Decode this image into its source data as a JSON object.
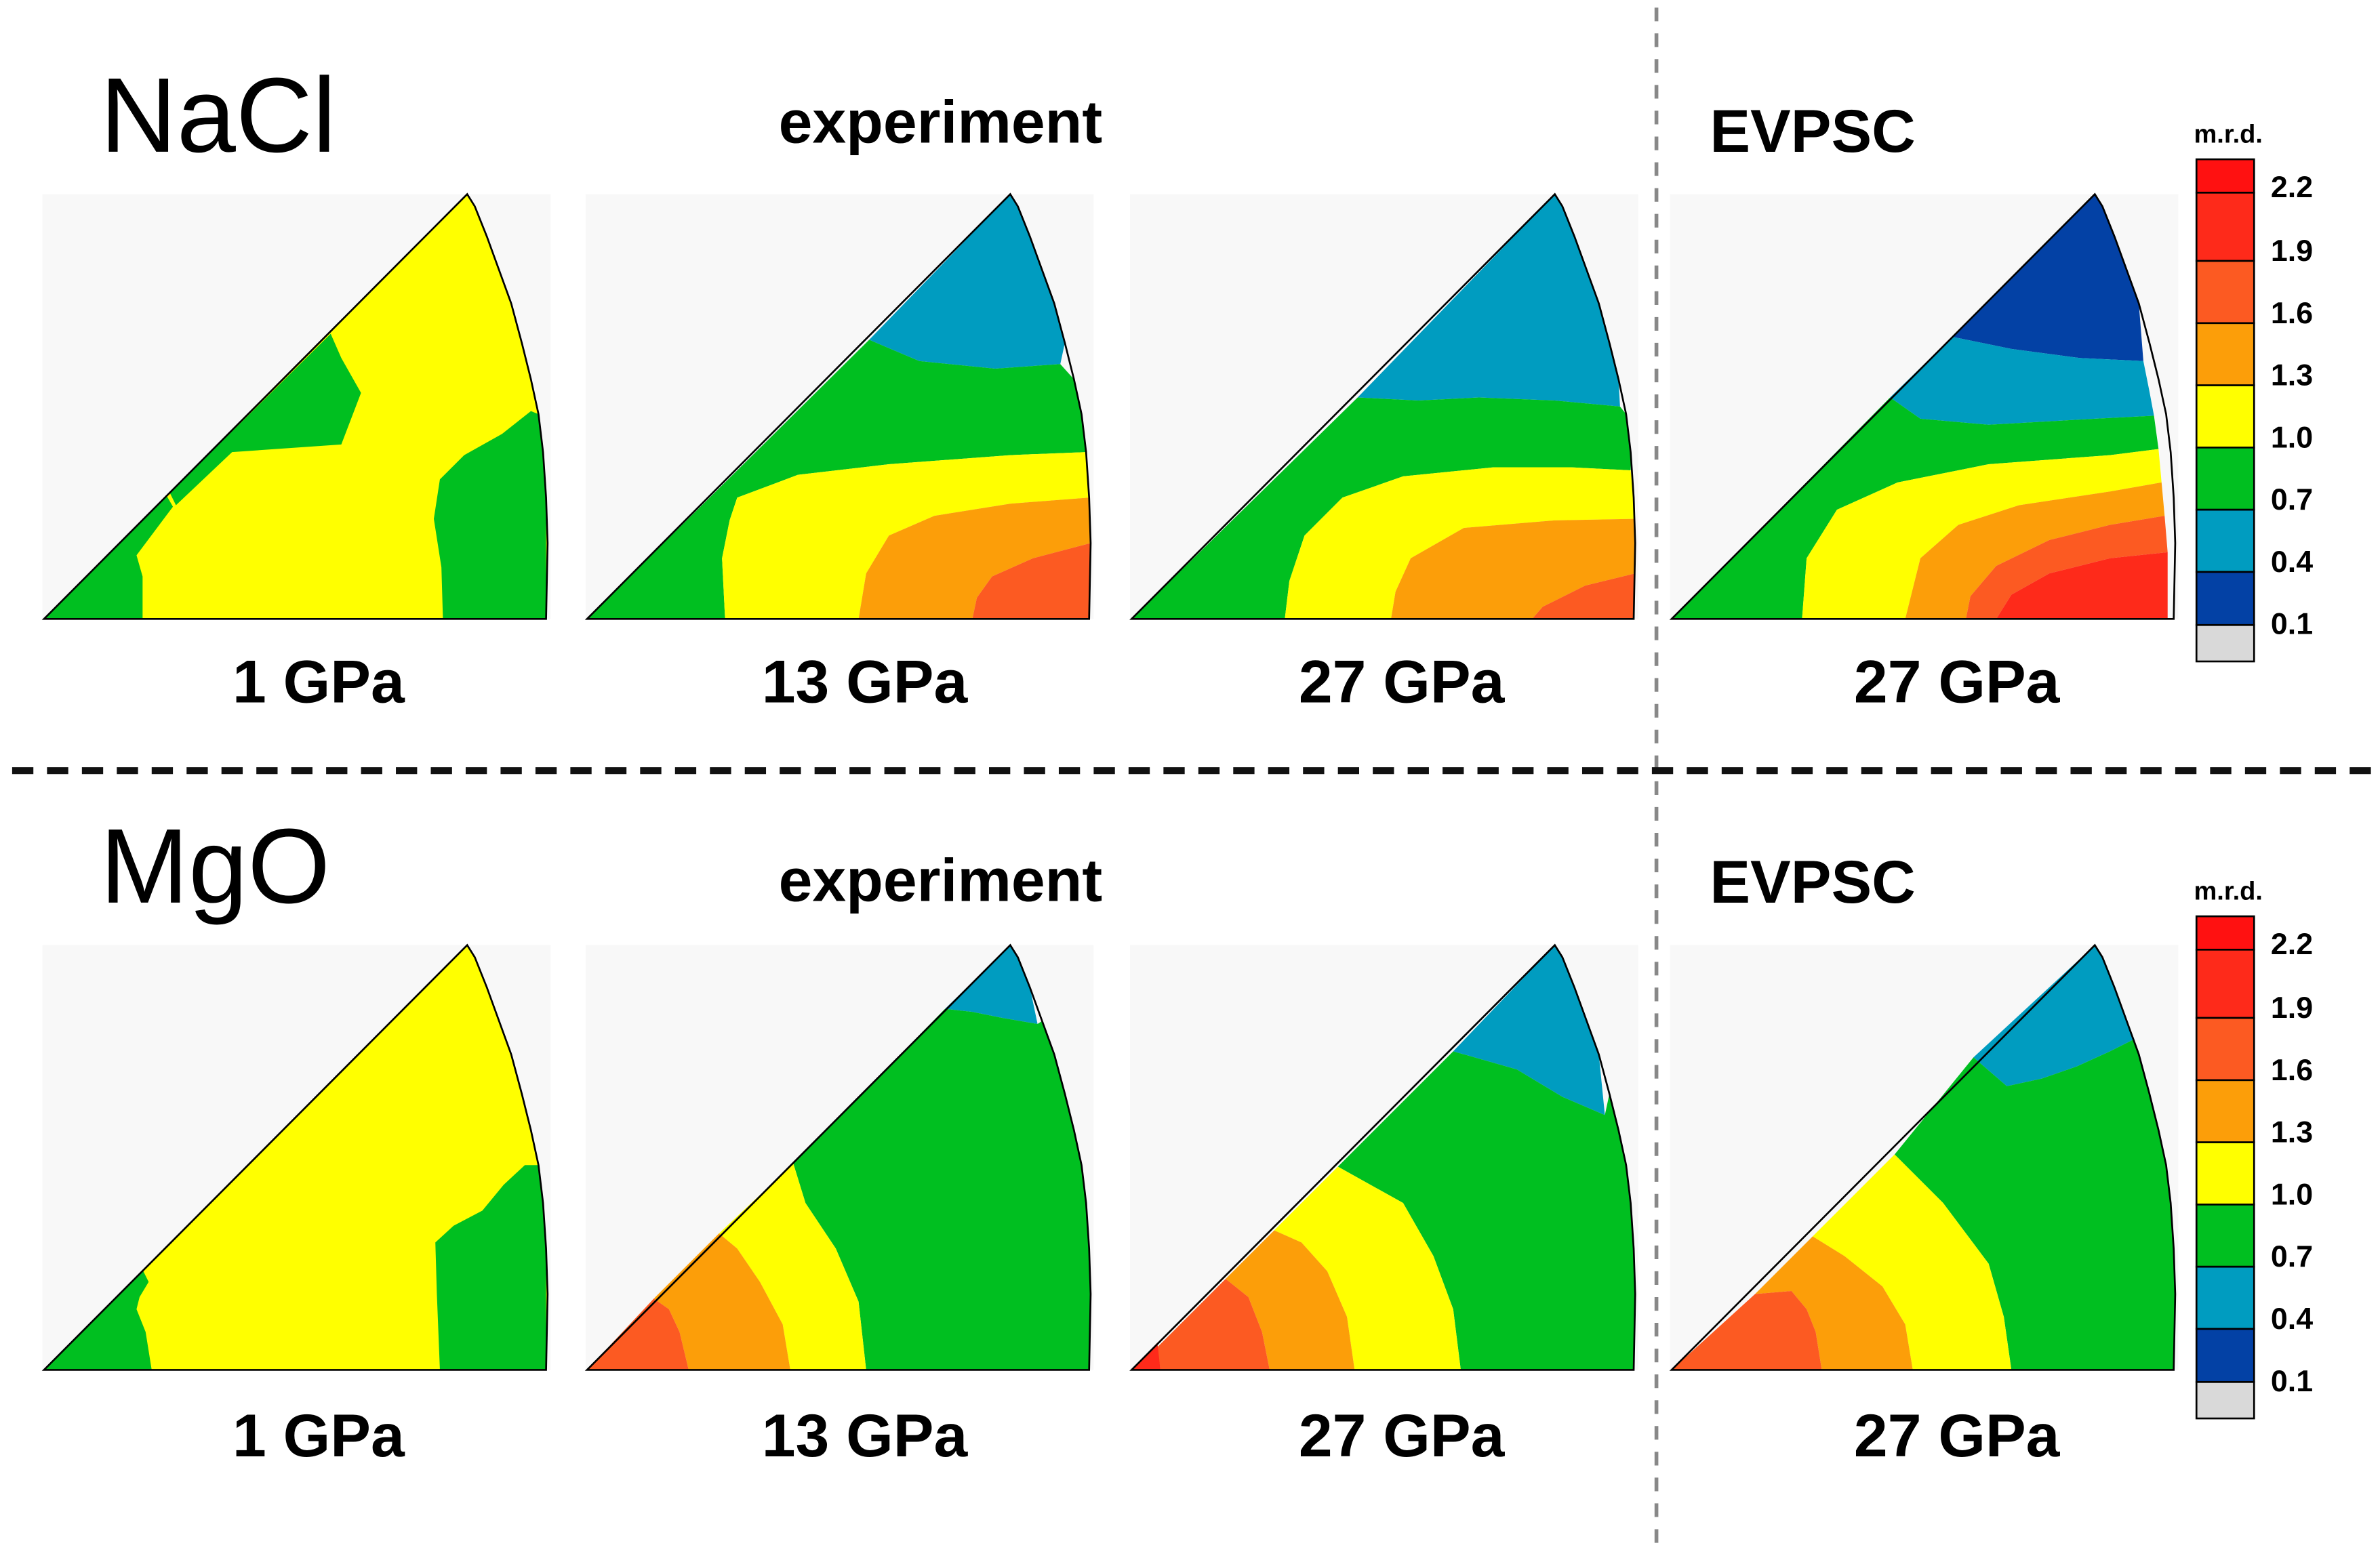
{
  "rows": [
    {
      "material": "NaCl",
      "experiment_label": "experiment",
      "model_label": "EVPSC",
      "panels": [
        {
          "pressure": "1 GPa",
          "source": "experiment",
          "contours": "nacl-1"
        },
        {
          "pressure": "13 GPa",
          "source": "experiment",
          "contours": "nacl-13"
        },
        {
          "pressure": "27 GPa",
          "source": "experiment",
          "contours": "nacl-27"
        },
        {
          "pressure": "27 GPa",
          "source": "EVPSC",
          "contours": "nacl-evpsc"
        }
      ]
    },
    {
      "material": "MgO",
      "experiment_label": "experiment",
      "model_label": "EVPSC",
      "panels": [
        {
          "pressure": "1 GPa",
          "source": "experiment",
          "contours": "mgo-1"
        },
        {
          "pressure": "13 GPa",
          "source": "experiment",
          "contours": "mgo-13"
        },
        {
          "pressure": "27 GPa",
          "source": "experiment",
          "contours": "mgo-27"
        },
        {
          "pressure": "27 GPa",
          "source": "EVPSC",
          "contours": "mgo-evpsc"
        }
      ]
    }
  ],
  "colorbar": {
    "unit": "m.r.d.",
    "ticks": [
      "2.2",
      "1.9",
      "1.6",
      "1.3",
      "1.0",
      "0.7",
      "0.4",
      "0.1"
    ],
    "bins": [
      {
        "level": "red",
        "color": "#ff1111"
      },
      {
        "level": "red-orange",
        "color": "#fe2a1a"
      },
      {
        "level": "orange-red",
        "color": "#fc5a22"
      },
      {
        "level": "orange",
        "color": "#fc9e09"
      },
      {
        "level": "yellow",
        "color": "#ffff00"
      },
      {
        "level": "green",
        "color": "#00bf20"
      },
      {
        "level": "teal",
        "color": "#009cc0"
      },
      {
        "level": "navy",
        "color": "#0341a5"
      },
      {
        "level": "empty",
        "color": "#d9d9d9"
      }
    ]
  },
  "colors": {
    "background": "#f8f8f8",
    "divider": "#888888",
    "row_separator": "#111111"
  }
}
